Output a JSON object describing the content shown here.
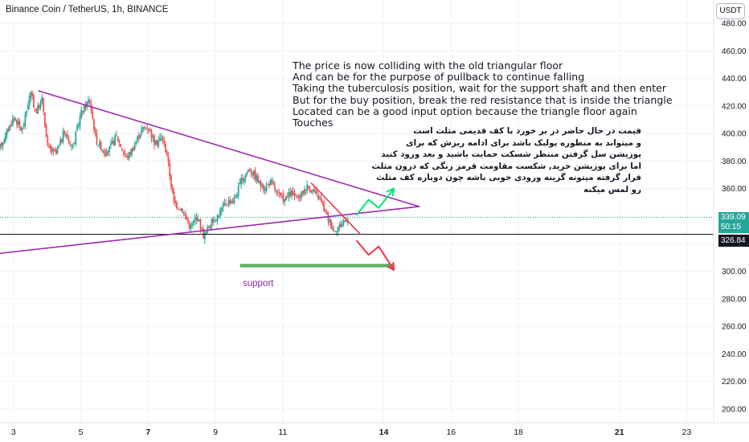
{
  "header": {
    "symbol_title": "Binance Coin / TetherUS, 1h, BINANCE",
    "currency_button": "USDT"
  },
  "annotations": {
    "english": [
      "The price is now colliding with the old triangular floor",
      "And can be for the purpose of pullback to continue falling",
      "Taking the tuberculosis position, wait for the support shaft and then enter",
      "But for the buy position, break the red resistance that is inside the triangle",
      "Located can be a good input option because the triangle floor again",
      "Touches"
    ],
    "persian": [
      "قیمت در حال حاضر در بر خورد با کف قدیمی مثلث است",
      "و میتواند به منظوره پولبک باشد برای ادامه ریزش که برای",
      "پوزیشن سل گرفتن منتظر شسکت حمایت باشید و بعد ورود کنید",
      "اما برای پوزیشن خرید, شکست مقاومت قرمز رنگی که درون مثلث",
      "قرار گرفته میتونه گزینه ورودی خوبی باشه چون دوباره کف مثلث",
      "رو لمس میکنه"
    ],
    "support_label": "support"
  },
  "price_tags": {
    "last_price": "339.09",
    "countdown": "50:15",
    "level": "326.84"
  },
  "colors": {
    "up": "#26a69a",
    "down": "#ef5350",
    "trendline": "#9c27b0",
    "resistance": "#f23645",
    "support_zone": "#66bb6a",
    "arrow_up": "#00e676",
    "arrow_down": "#f23645",
    "grid": "#f0f3fa",
    "axis_text": "#131722"
  },
  "chart_data": {
    "type": "candlestick",
    "y_axis": {
      "ylim": [
        190,
        497
      ],
      "ticks": [
        200,
        220,
        240,
        260,
        280,
        300,
        320,
        340,
        360,
        380,
        400,
        420,
        440,
        460,
        480
      ],
      "tick_labels": [
        "200.00",
        "220.00",
        "240.00",
        "260.00",
        "280.00",
        "300.00",
        "320.00",
        "340.00",
        "360.00",
        "380.00",
        "400.00",
        "420.00",
        "440.00",
        "460.00",
        "480.00"
      ]
    },
    "x_axis": {
      "range": [
        2.6,
        23.8
      ],
      "ticks": [
        3,
        5,
        7,
        9,
        11,
        14,
        16,
        18,
        21,
        23
      ],
      "tick_labels": [
        "3",
        "5",
        "7",
        "9",
        "11",
        "14",
        "16",
        "18",
        "21",
        "23"
      ],
      "bold_labels": [
        "7",
        "14",
        "21"
      ]
    },
    "price_path": [
      [
        2.6,
        388
      ],
      [
        3.05,
        412
      ],
      [
        3.3,
        402
      ],
      [
        3.55,
        430
      ],
      [
        3.7,
        415
      ],
      [
        3.9,
        425
      ],
      [
        4.05,
        390
      ],
      [
        4.3,
        385
      ],
      [
        4.55,
        401
      ],
      [
        4.8,
        390
      ],
      [
        5.05,
        415
      ],
      [
        5.3,
        425
      ],
      [
        5.5,
        395
      ],
      [
        5.8,
        385
      ],
      [
        6.1,
        398
      ],
      [
        6.4,
        382
      ],
      [
        6.6,
        390
      ],
      [
        6.85,
        403
      ],
      [
        7.05,
        405
      ],
      [
        7.25,
        392
      ],
      [
        7.45,
        398
      ],
      [
        7.6,
        385
      ],
      [
        7.8,
        350
      ],
      [
        8.05,
        345
      ],
      [
        8.3,
        332
      ],
      [
        8.5,
        340
      ],
      [
        8.7,
        325
      ],
      [
        8.9,
        335
      ],
      [
        9.1,
        340
      ],
      [
        9.35,
        350
      ],
      [
        9.6,
        352
      ],
      [
        9.8,
        365
      ],
      [
        10.05,
        375
      ],
      [
        10.25,
        368
      ],
      [
        10.45,
        360
      ],
      [
        10.7,
        365
      ],
      [
        10.9,
        355
      ],
      [
        11.1,
        352
      ],
      [
        11.3,
        357
      ],
      [
        11.5,
        352
      ],
      [
        11.75,
        362
      ],
      [
        11.95,
        358
      ],
      [
        12.15,
        352
      ],
      [
        12.35,
        340
      ],
      [
        12.55,
        330
      ],
      [
        12.75,
        333
      ],
      [
        12.95,
        339
      ]
    ],
    "horizontal_levels": [
      {
        "value": 326.84,
        "style": "solid"
      },
      {
        "value": 339.09,
        "style": "dotted"
      }
    ],
    "drawings": {
      "triangle_upper": [
        [
          3.75,
          431
        ],
        [
          15.05,
          347
        ]
      ],
      "triangle_lower": [
        [
          2.6,
          313
        ],
        [
          15.05,
          347
        ]
      ],
      "resistance_line": [
        [
          11.85,
          364
        ],
        [
          13.3,
          327
        ]
      ],
      "support_zone": {
        "x": [
          9.75,
          14.3
        ],
        "y": [
          303.5,
          305
        ]
      },
      "arrow_up": [
        [
          13.2,
          341
        ],
        [
          13.55,
          352
        ],
        [
          13.85,
          346
        ],
        [
          14.3,
          360
        ]
      ],
      "arrow_down": [
        [
          13.2,
          322
        ],
        [
          13.55,
          312
        ],
        [
          13.85,
          318
        ],
        [
          14.3,
          301
        ]
      ]
    }
  }
}
